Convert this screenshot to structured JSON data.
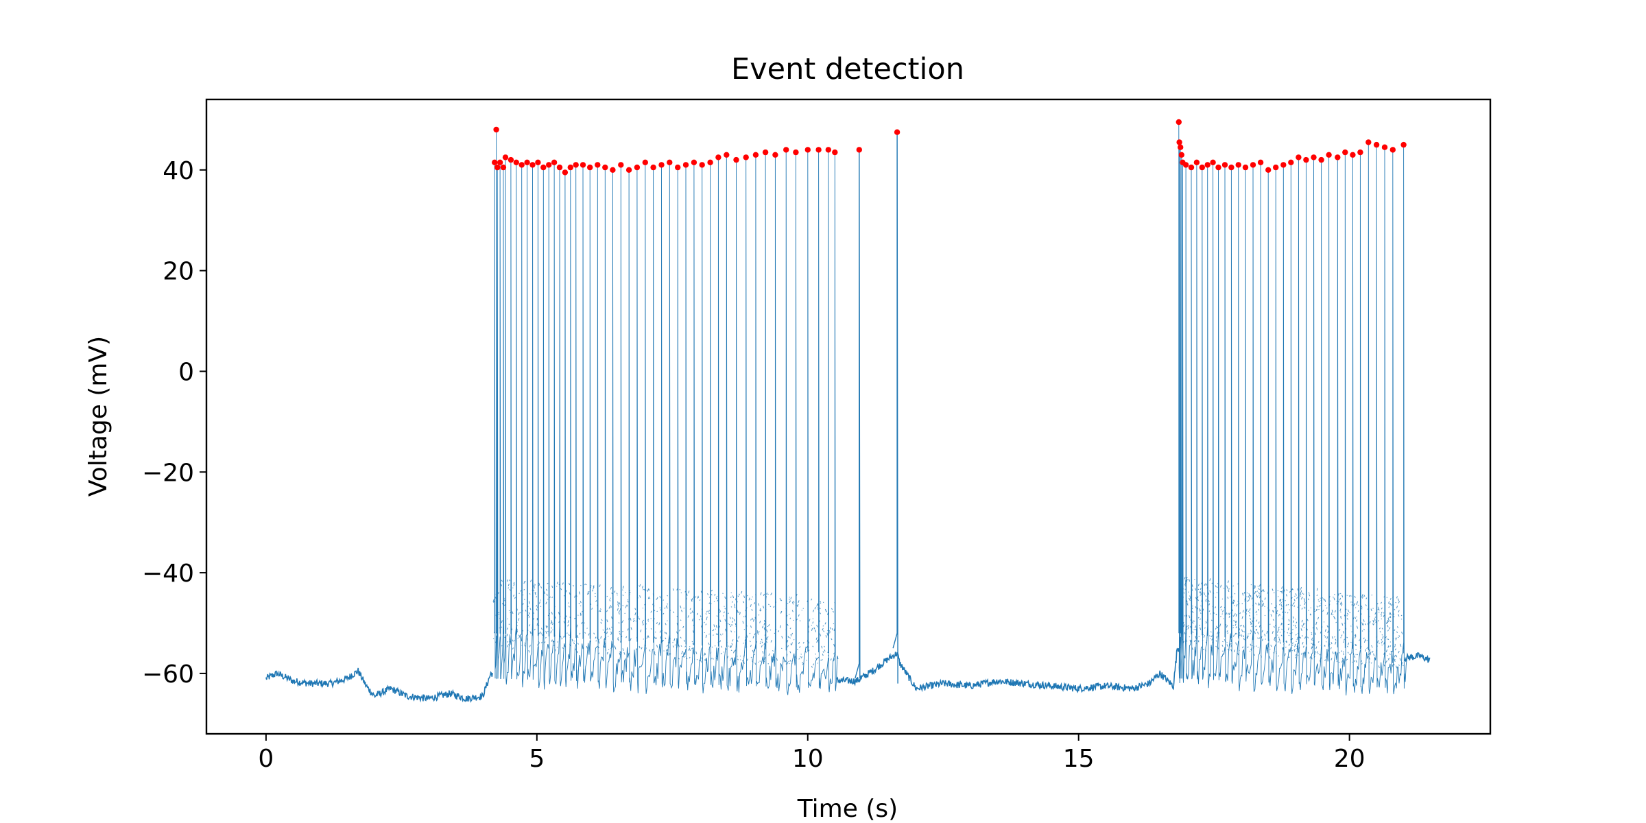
{
  "chart_data": {
    "type": "line",
    "title": "Event detection",
    "xlabel": "Time (s)",
    "ylabel": "Voltage (mV)",
    "xlim": [
      -1.1,
      22.6
    ],
    "ylim": [
      -72,
      54
    ],
    "xticks": [
      0,
      5,
      10,
      15,
      20
    ],
    "yticks": [
      -60,
      -40,
      -20,
      0,
      20,
      40
    ],
    "xtick_labels": [
      "0",
      "5",
      "10",
      "15",
      "20"
    ],
    "ytick_labels": [
      "−60",
      "−40",
      "−20",
      "0",
      "20",
      "40"
    ],
    "grid": false,
    "legend": "none",
    "colors": {
      "trace": "#1f77b4",
      "events": "#ff0000",
      "axes": "#000000"
    },
    "series": [
      {
        "kind": "voltage-trace",
        "baseline": [
          [
            0.0,
            -61
          ],
          [
            0.2,
            -60
          ],
          [
            0.5,
            -61.5
          ],
          [
            0.8,
            -62
          ],
          [
            1.2,
            -62
          ],
          [
            1.5,
            -61
          ],
          [
            1.7,
            -59.5
          ],
          [
            1.85,
            -62.5
          ],
          [
            2.0,
            -64.5
          ],
          [
            2.3,
            -63
          ],
          [
            2.6,
            -64.5
          ],
          [
            3.0,
            -65
          ],
          [
            3.4,
            -64
          ],
          [
            3.7,
            -65
          ],
          [
            4.0,
            -64.5
          ],
          [
            4.15,
            -60
          ],
          [
            10.9,
            -61.5
          ],
          [
            11.2,
            -59.5
          ],
          [
            11.5,
            -57
          ],
          [
            11.65,
            -56
          ],
          [
            11.7,
            -58
          ],
          [
            12.0,
            -63
          ],
          [
            12.5,
            -62
          ],
          [
            13.0,
            -62.5
          ],
          [
            13.5,
            -61.5
          ],
          [
            14.0,
            -62
          ],
          [
            14.5,
            -62.5
          ],
          [
            15.0,
            -63
          ],
          [
            15.5,
            -62.5
          ],
          [
            16.0,
            -63
          ],
          [
            16.3,
            -62
          ],
          [
            16.5,
            -60
          ],
          [
            16.75,
            -62.5
          ],
          [
            16.82,
            -55
          ],
          [
            21.0,
            -57
          ],
          [
            21.3,
            -56.5
          ],
          [
            21.5,
            -57.5
          ]
        ],
        "bursts": [
          {
            "start": 4.18,
            "end": 10.5,
            "trough_start": -61,
            "trough_end": -63,
            "pre_spike_start": -52,
            "pre_spike_end": -56
          },
          {
            "start": 16.85,
            "end": 21.0,
            "trough_start": -61,
            "trough_end": -63,
            "pre_spike_start": -52,
            "pre_spike_end": -56
          }
        ],
        "isolated_spikes": [
          {
            "t": 10.95,
            "peak": 44,
            "pre": -58,
            "post": -61
          },
          {
            "t": 11.65,
            "peak": 47.5,
            "pre": -52,
            "post": -62
          }
        ]
      },
      {
        "kind": "detected-events",
        "points": [
          [
            4.25,
            48
          ],
          [
            4.22,
            41.5
          ],
          [
            4.27,
            40.5
          ],
          [
            4.32,
            41.5
          ],
          [
            4.38,
            40.5
          ],
          [
            4.42,
            42.5
          ],
          [
            4.52,
            42
          ],
          [
            4.62,
            41.5
          ],
          [
            4.72,
            41
          ],
          [
            4.82,
            41.5
          ],
          [
            4.92,
            41
          ],
          [
            5.02,
            41.5
          ],
          [
            5.12,
            40.5
          ],
          [
            5.22,
            41
          ],
          [
            5.32,
            41.5
          ],
          [
            5.42,
            40.5
          ],
          [
            5.52,
            39.5
          ],
          [
            5.62,
            40.5
          ],
          [
            5.72,
            41
          ],
          [
            5.85,
            41
          ],
          [
            5.98,
            40.5
          ],
          [
            6.12,
            41
          ],
          [
            6.26,
            40.5
          ],
          [
            6.4,
            40
          ],
          [
            6.55,
            41
          ],
          [
            6.7,
            40
          ],
          [
            6.85,
            40.5
          ],
          [
            7.0,
            41.5
          ],
          [
            7.15,
            40.5
          ],
          [
            7.3,
            41
          ],
          [
            7.45,
            41.5
          ],
          [
            7.6,
            40.5
          ],
          [
            7.75,
            41
          ],
          [
            7.9,
            41.5
          ],
          [
            8.05,
            41
          ],
          [
            8.2,
            41.5
          ],
          [
            8.35,
            42.5
          ],
          [
            8.5,
            43
          ],
          [
            8.68,
            42
          ],
          [
            8.86,
            42.5
          ],
          [
            9.04,
            43
          ],
          [
            9.22,
            43.5
          ],
          [
            9.4,
            43
          ],
          [
            9.6,
            44
          ],
          [
            9.78,
            43.5
          ],
          [
            10.0,
            44
          ],
          [
            10.2,
            44
          ],
          [
            10.38,
            44
          ],
          [
            10.5,
            43.5
          ],
          [
            10.95,
            44
          ],
          [
            11.65,
            47.5
          ],
          [
            16.85,
            49.5
          ],
          [
            16.86,
            45.5
          ],
          [
            16.88,
            44.5
          ],
          [
            16.9,
            43
          ],
          [
            16.92,
            41.5
          ],
          [
            16.98,
            41
          ],
          [
            17.08,
            40.5
          ],
          [
            17.18,
            41.5
          ],
          [
            17.28,
            40.5
          ],
          [
            17.38,
            41
          ],
          [
            17.48,
            41.5
          ],
          [
            17.58,
            40.5
          ],
          [
            17.7,
            41
          ],
          [
            17.82,
            40.5
          ],
          [
            17.95,
            41
          ],
          [
            18.08,
            40.5
          ],
          [
            18.22,
            41
          ],
          [
            18.36,
            41.5
          ],
          [
            18.5,
            40
          ],
          [
            18.64,
            40.5
          ],
          [
            18.78,
            41
          ],
          [
            18.92,
            41.5
          ],
          [
            19.06,
            42.5
          ],
          [
            19.2,
            42
          ],
          [
            19.34,
            42.5
          ],
          [
            19.48,
            42
          ],
          [
            19.62,
            43
          ],
          [
            19.78,
            42.5
          ],
          [
            19.92,
            43.5
          ],
          [
            20.06,
            43
          ],
          [
            20.2,
            43.5
          ],
          [
            20.35,
            45.5
          ],
          [
            20.5,
            45
          ],
          [
            20.65,
            44.5
          ],
          [
            20.8,
            44
          ],
          [
            21.0,
            45
          ]
        ]
      }
    ]
  }
}
